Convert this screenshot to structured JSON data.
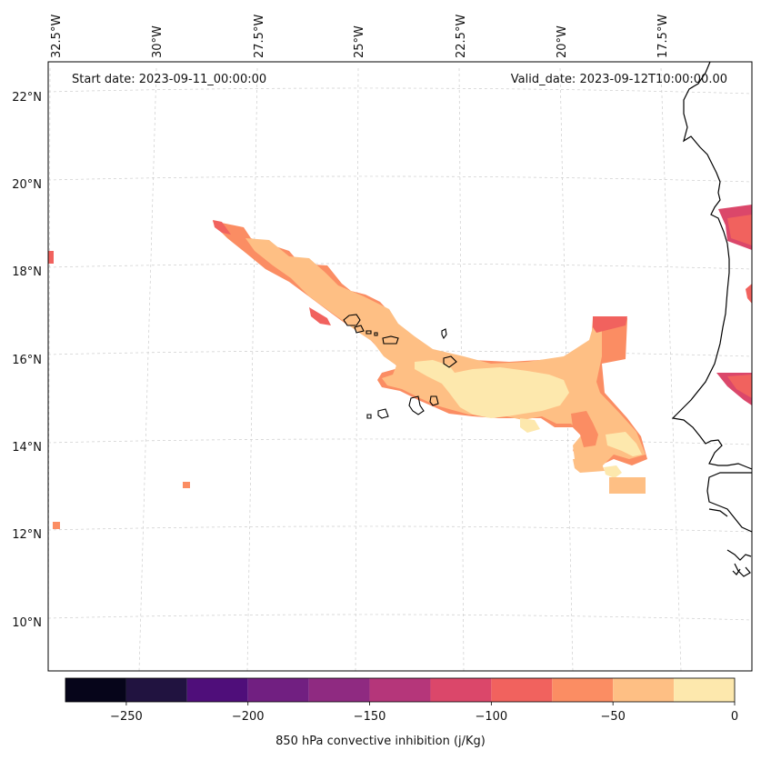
{
  "map": {
    "start_date": "Start date: 2023-09-11_00:00:00",
    "valid_date": "Valid_date: 2023-09-12T10:00:00.00",
    "lon_labels": [
      "32.5°W",
      "30°W",
      "27.5°W",
      "25°W",
      "22.5°W",
      "20°W",
      "17.5°W"
    ],
    "lat_labels": [
      "22°N",
      "20°N",
      "18°N",
      "16°N",
      "14°N",
      "12°N",
      "10°N"
    ],
    "grid": true
  },
  "colorbar": {
    "title": "850 hPa convective inhibition (j/Kg)",
    "tick_labels": [
      "−250",
      "−200",
      "−150",
      "−100",
      "−50",
      "0"
    ],
    "levels": [
      -275,
      -250,
      -225,
      -200,
      -175,
      -150,
      -125,
      -100,
      -75,
      -50,
      -25,
      0
    ],
    "colors": [
      "#06051a",
      "#211340",
      "#4f0e7a",
      "#711f81",
      "#8f2a81",
      "#b5367a",
      "#db476a",
      "#f1625e",
      "#fb8d63",
      "#febf84",
      "#fde8ad"
    ]
  },
  "fill_colors": {
    "lightest": "#fde8ad",
    "light": "#febf84",
    "medium": "#fb8d63",
    "dark": "#f1625e",
    "darker": "#db476a"
  }
}
